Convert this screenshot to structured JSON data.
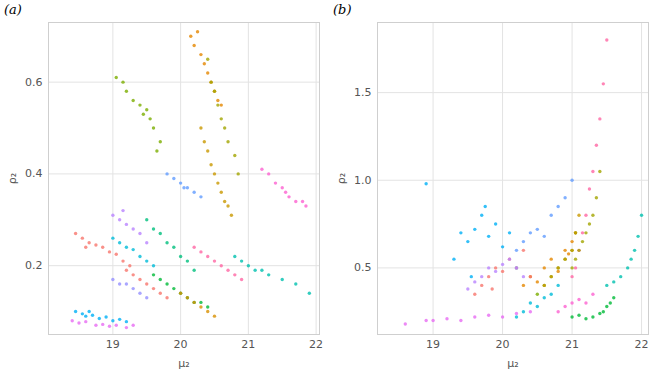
{
  "chart_data": [
    {
      "type": "scatter",
      "title": "(a)",
      "x_label": "μ₂",
      "y_label": "ρ₂",
      "xlim": [
        18.05,
        22.05
      ],
      "ylim": [
        0.05,
        0.73
      ],
      "xticks": [
        19,
        20,
        21,
        22
      ],
      "yticks": [
        0.2,
        0.4,
        0.6
      ],
      "grid": true,
      "series": [
        {
          "color": "#00B0F6",
          "x": [
            18.45,
            18.55,
            18.6,
            18.7,
            18.8,
            18.9,
            19.0,
            19.1,
            19.2,
            18.65
          ],
          "values": [
            0.1,
            0.095,
            0.09,
            0.092,
            0.085,
            0.088,
            0.08,
            0.083,
            0.078,
            0.1
          ]
        },
        {
          "color": "#E76BF3",
          "x": [
            18.4,
            18.5,
            18.6,
            18.75,
            18.85,
            18.95,
            19.05,
            19.2,
            19.3
          ],
          "values": [
            0.08,
            0.075,
            0.078,
            0.07,
            0.072,
            0.068,
            0.07,
            0.065,
            0.07
          ]
        },
        {
          "color": "#F8766D",
          "x": [
            18.45,
            18.55,
            18.65,
            18.75,
            18.85,
            18.95,
            19.05,
            19.15,
            19.25,
            18.6
          ],
          "values": [
            0.27,
            0.26,
            0.25,
            0.245,
            0.24,
            0.23,
            0.225,
            0.21,
            0.2,
            0.24
          ]
        },
        {
          "color": "#B983FF",
          "x": [
            19.0,
            19.1,
            19.2,
            19.3,
            19.4,
            19.5,
            19.15
          ],
          "values": [
            0.31,
            0.3,
            0.29,
            0.28,
            0.27,
            0.25,
            0.32
          ]
        },
        {
          "color": "#00BCD8",
          "x": [
            19.0,
            19.1,
            19.2,
            19.3,
            19.4,
            19.5,
            19.6
          ],
          "values": [
            0.26,
            0.25,
            0.24,
            0.235,
            0.22,
            0.21,
            0.2
          ]
        },
        {
          "color": "#7CAE00",
          "x": [
            19.05,
            19.15,
            19.3,
            19.4,
            19.5,
            19.55,
            19.6,
            19.7,
            19.2,
            19.45,
            19.65
          ],
          "values": [
            0.61,
            0.6,
            0.56,
            0.55,
            0.54,
            0.52,
            0.5,
            0.47,
            0.58,
            0.53,
            0.45
          ]
        },
        {
          "color": "#E58700",
          "x": [
            20.15,
            20.2,
            20.3,
            20.35,
            20.4,
            20.45,
            20.5,
            20.55,
            20.25,
            20.6
          ],
          "values": [
            0.7,
            0.68,
            0.66,
            0.64,
            0.62,
            0.6,
            0.58,
            0.56,
            0.71,
            0.55
          ]
        },
        {
          "color": "#C99800",
          "x": [
            20.3,
            20.35,
            20.4,
            20.45,
            20.5,
            20.55,
            20.6,
            20.65,
            20.7,
            20.75
          ],
          "values": [
            0.5,
            0.47,
            0.45,
            0.42,
            0.4,
            0.38,
            0.36,
            0.34,
            0.33,
            0.31
          ]
        },
        {
          "color": "#A3A500",
          "x": [
            20.4,
            20.45,
            20.5,
            20.55,
            20.6,
            20.65,
            20.7,
            20.8,
            20.85
          ],
          "values": [
            0.65,
            0.6,
            0.58,
            0.55,
            0.52,
            0.5,
            0.47,
            0.44,
            0.4
          ]
        },
        {
          "color": "#619CFF",
          "x": [
            19.8,
            19.9,
            20.0,
            20.05,
            20.1,
            20.2,
            20.3
          ],
          "values": [
            0.4,
            0.39,
            0.38,
            0.37,
            0.37,
            0.36,
            0.35
          ]
        },
        {
          "color": "#FD61D1",
          "x": [
            21.2,
            21.3,
            21.4,
            21.5,
            21.55,
            21.6,
            21.7,
            21.8,
            21.85
          ],
          "values": [
            0.41,
            0.4,
            0.38,
            0.37,
            0.36,
            0.35,
            0.34,
            0.34,
            0.33
          ]
        },
        {
          "color": "#00C0AF",
          "x": [
            20.8,
            20.9,
            21.0,
            21.1,
            21.2,
            21.3,
            21.5,
            21.7,
            21.9
          ],
          "values": [
            0.22,
            0.21,
            0.2,
            0.19,
            0.19,
            0.18,
            0.17,
            0.16,
            0.14
          ]
        },
        {
          "color": "#00BA38",
          "x": [
            19.6,
            19.7,
            19.8,
            19.9,
            20.0,
            20.1,
            20.2,
            20.3,
            20.4
          ],
          "values": [
            0.18,
            0.17,
            0.16,
            0.15,
            0.14,
            0.13,
            0.12,
            0.12,
            0.11
          ]
        },
        {
          "color": "#D89000",
          "x": [
            20.0,
            20.1,
            20.2,
            20.3,
            20.4,
            20.5
          ],
          "values": [
            0.14,
            0.13,
            0.12,
            0.11,
            0.1,
            0.09
          ]
        },
        {
          "color": "#FF67A4",
          "x": [
            20.2,
            20.3,
            20.4,
            20.5,
            20.6,
            20.7,
            20.8,
            20.9
          ],
          "values": [
            0.24,
            0.23,
            0.22,
            0.21,
            0.2,
            0.19,
            0.18,
            0.17
          ]
        },
        {
          "color": "#00BF7D",
          "x": [
            19.5,
            19.6,
            19.7,
            19.8,
            19.9,
            20.0,
            20.1,
            20.2
          ],
          "values": [
            0.3,
            0.28,
            0.27,
            0.25,
            0.24,
            0.22,
            0.21,
            0.19
          ]
        },
        {
          "color": "#F8766D",
          "x": [
            19.2,
            19.3,
            19.4,
            19.5,
            19.6,
            19.7,
            19.8
          ],
          "values": [
            0.19,
            0.18,
            0.17,
            0.16,
            0.15,
            0.14,
            0.13
          ]
        },
        {
          "color": "#9590FF",
          "x": [
            19.0,
            19.1,
            19.2,
            19.3,
            19.4,
            19.5
          ],
          "values": [
            0.17,
            0.16,
            0.16,
            0.15,
            0.14,
            0.13
          ]
        }
      ]
    },
    {
      "type": "scatter",
      "title": "(b)",
      "x_label": "μ₂",
      "y_label": "ρ₂",
      "xlim": [
        18.2,
        22.1
      ],
      "ylim": [
        0.12,
        1.9
      ],
      "xticks": [
        19,
        20,
        21,
        22
      ],
      "yticks": [
        0.5,
        {
          "value": 1,
          "label": "1.0"
        },
        1.5
      ],
      "grid": true,
      "series": [
        {
          "color": "#00B0F6",
          "x": [
            18.9,
            19.3,
            19.4,
            19.5,
            19.6,
            19.7,
            19.8,
            19.9,
            20.0,
            20.1,
            19.55,
            19.75,
            20.2
          ],
          "values": [
            0.98,
            0.55,
            0.7,
            0.65,
            0.72,
            0.8,
            0.68,
            0.75,
            0.62,
            0.7,
            0.45,
            0.85,
            0.5
          ]
        },
        {
          "color": "#FF67A4",
          "x": [
            21.0,
            21.05,
            21.1,
            21.15,
            21.2,
            21.25,
            21.3,
            21.35,
            21.4,
            21.45,
            21.5
          ],
          "values": [
            0.45,
            0.5,
            0.6,
            0.7,
            0.8,
            0.95,
            1.05,
            1.2,
            1.35,
            1.55,
            1.8
          ]
        },
        {
          "color": "#E76BF3",
          "x": [
            18.6,
            18.9,
            19.2,
            19.4,
            19.6,
            19.8,
            20.0,
            20.2,
            20.4,
            19.0
          ],
          "values": [
            0.18,
            0.2,
            0.21,
            0.2,
            0.22,
            0.23,
            0.22,
            0.24,
            0.25,
            0.2
          ]
        },
        {
          "color": "#00BA38",
          "x": [
            21.0,
            21.1,
            21.2,
            21.3,
            21.4,
            21.45,
            21.5,
            21.55,
            21.6
          ],
          "values": [
            0.22,
            0.23,
            0.21,
            0.22,
            0.24,
            0.25,
            0.28,
            0.3,
            0.33
          ]
        },
        {
          "color": "#00C0AF",
          "x": [
            21.5,
            21.6,
            21.7,
            21.8,
            21.85,
            21.9,
            21.95,
            22.0
          ],
          "values": [
            0.4,
            0.42,
            0.45,
            0.5,
            0.55,
            0.6,
            0.68,
            0.8
          ]
        },
        {
          "color": "#A3A500",
          "x": [
            21.0,
            21.05,
            21.1,
            21.15,
            21.2,
            21.25,
            21.3,
            21.35,
            21.4
          ],
          "values": [
            0.5,
            0.55,
            0.6,
            0.65,
            0.7,
            0.75,
            0.8,
            0.9,
            1.05
          ]
        },
        {
          "color": "#E58700",
          "x": [
            20.3,
            20.4,
            20.5,
            20.6,
            20.7,
            20.8,
            20.9,
            21.0,
            21.05,
            20.95
          ],
          "values": [
            0.4,
            0.45,
            0.42,
            0.5,
            0.55,
            0.48,
            0.6,
            0.65,
            0.7,
            0.58
          ]
        },
        {
          "color": "#F8766D",
          "x": [
            19.6,
            19.7,
            19.8,
            19.9,
            20.0,
            20.1,
            20.2,
            20.3,
            20.4,
            19.85
          ],
          "values": [
            0.35,
            0.4,
            0.45,
            0.5,
            0.48,
            0.55,
            0.5,
            0.6,
            0.45,
            0.38
          ]
        },
        {
          "color": "#619CFF",
          "x": [
            20.2,
            20.3,
            20.4,
            20.5,
            20.6,
            20.7,
            20.8,
            20.9,
            21.0
          ],
          "values": [
            0.6,
            0.65,
            0.7,
            0.72,
            0.68,
            0.8,
            0.85,
            0.9,
            1.0
          ]
        },
        {
          "color": "#7CAE00",
          "x": [
            20.5,
            20.6,
            20.7,
            20.8,
            20.9,
            21.0,
            21.05
          ],
          "values": [
            0.35,
            0.4,
            0.45,
            0.5,
            0.55,
            0.6,
            0.7
          ]
        },
        {
          "color": "#00BCD8",
          "x": [
            20.2,
            20.3,
            20.4,
            20.5,
            20.6,
            20.7,
            20.8
          ],
          "values": [
            0.22,
            0.25,
            0.3,
            0.28,
            0.33,
            0.35,
            0.4
          ]
        },
        {
          "color": "#FD61D1",
          "x": [
            20.8,
            20.9,
            21.0,
            21.1,
            21.2,
            21.3
          ],
          "values": [
            0.25,
            0.28,
            0.3,
            0.32,
            0.3,
            0.35
          ]
        },
        {
          "color": "#B983FF",
          "x": [
            19.5,
            19.6,
            19.7,
            19.8,
            19.9,
            20.0,
            20.1,
            20.2,
            20.3
          ],
          "values": [
            0.38,
            0.42,
            0.45,
            0.5,
            0.48,
            0.52,
            0.55,
            0.5,
            0.45
          ]
        },
        {
          "color": "#C99800",
          "x": [
            20.6,
            20.7,
            20.8,
            20.9,
            21.0,
            21.05,
            21.1
          ],
          "values": [
            0.4,
            0.45,
            0.5,
            0.55,
            0.6,
            0.7,
            0.8
          ]
        }
      ]
    }
  ]
}
